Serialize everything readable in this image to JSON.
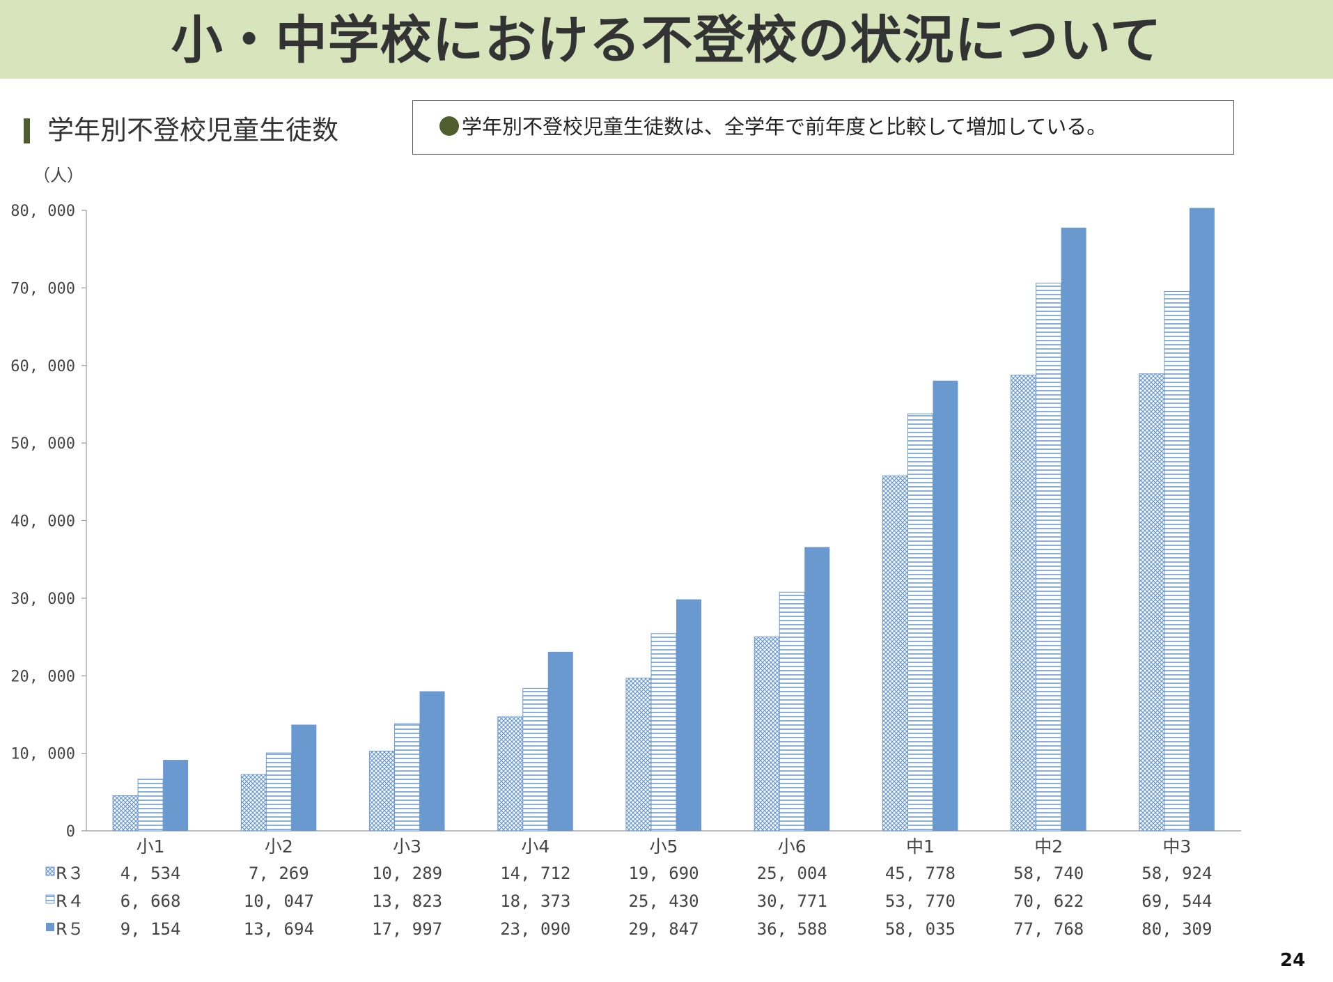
{
  "header": {
    "title": "小・中学校における不登校の状況について"
  },
  "section": {
    "title": "学年別不登校児童生徒数"
  },
  "note": {
    "text": "学年別不登校児童生徒数は、全学年で前年度と比較して増加している。"
  },
  "page": {
    "number": "24"
  },
  "colors": {
    "banner": "#d8e4bc",
    "accent": "#4e5e2e",
    "series": "#6a99d0"
  },
  "chart_data": {
    "type": "bar",
    "unit_label": "（人）",
    "categories": [
      "小1",
      "小2",
      "小3",
      "小4",
      "小5",
      "小6",
      "中1",
      "中2",
      "中3"
    ],
    "series": [
      {
        "name": "R３",
        "pattern": "crosshatch",
        "values": [
          4534,
          7269,
          10289,
          14712,
          19690,
          25004,
          45778,
          58740,
          58924
        ],
        "labels": [
          "4, 534",
          "7, 269",
          "10, 289",
          "14, 712",
          "19, 690",
          "25, 004",
          "45, 778",
          "58, 740",
          "58, 924"
        ]
      },
      {
        "name": "R４",
        "pattern": "horizontal-lines",
        "values": [
          6668,
          10047,
          13823,
          18373,
          25430,
          30771,
          53770,
          70622,
          69544
        ],
        "labels": [
          "6, 668",
          "10, 047",
          "13, 823",
          "18, 373",
          "25, 430",
          "30, 771",
          "53, 770",
          "70, 622",
          "69, 544"
        ]
      },
      {
        "name": "R５",
        "pattern": "solid",
        "values": [
          9154,
          13694,
          17997,
          23090,
          29847,
          36588,
          58035,
          77768,
          80309
        ],
        "labels": [
          "9, 154",
          "13, 694",
          "17, 997",
          "23, 090",
          "29, 847",
          "36, 588",
          "58, 035",
          "77, 768",
          "80, 309"
        ]
      }
    ],
    "yticks": [
      0,
      10000,
      20000,
      30000,
      40000,
      50000,
      60000,
      70000,
      80000
    ],
    "ytick_labels": [
      "0",
      "10, 000",
      "20, 000",
      "30, 000",
      "40, 000",
      "50, 000",
      "60, 000",
      "70, 000",
      "80, 000"
    ],
    "ylim": [
      0,
      80000
    ],
    "grid": false,
    "legend": "data-table-below"
  }
}
